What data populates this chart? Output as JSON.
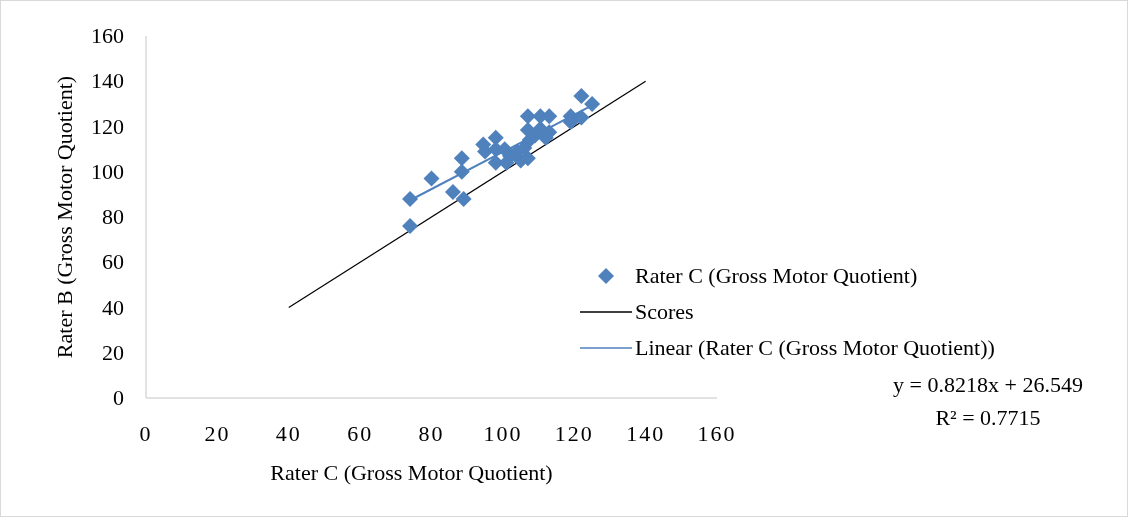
{
  "chart_data": {
    "type": "scatter",
    "xlabel": "Rater C (Gross Motor Quotient)",
    "ylabel": "Rater B (Gross Motor Quotient)",
    "xlim": [
      0,
      160
    ],
    "ylim": [
      0,
      160
    ],
    "xticks": [
      0,
      20,
      40,
      60,
      80,
      100,
      120,
      140,
      160
    ],
    "yticks": [
      0,
      20,
      40,
      60,
      80,
      100,
      120,
      140,
      160
    ],
    "grid": false,
    "legend": "right",
    "series": [
      {
        "name": "Rater C (Gross Motor Quotient)",
        "marker": "diamond",
        "color": "#4f81bd",
        "x": [
          74,
          74,
          80,
          86,
          88.5,
          88.5,
          89,
          94.5,
          95,
          98,
          98,
          98,
          100.5,
          102,
          101,
          104,
          105,
          106,
          107,
          107.5,
          107,
          109,
          110.5,
          112,
          113,
          107,
          110.5,
          113,
          122,
          125,
          119,
          119,
          122
        ],
        "values": [
          88,
          76,
          97,
          91,
          106,
          100,
          88,
          112,
          109,
          115,
          110,
          104,
          110,
          107,
          104,
          109,
          105,
          110.5,
          106,
          114,
          118.5,
          116,
          119,
          115,
          117.5,
          124.5,
          124.5,
          124.5,
          133.5,
          130,
          124.5,
          122,
          124
        ]
      },
      {
        "name": "Scores",
        "type": "line",
        "marker": "none",
        "color": "#000000",
        "x": [
          40,
          140
        ],
        "values": [
          40,
          140
        ]
      },
      {
        "name": "Linear (Rater C (Gross Motor Quotient))",
        "type": "line",
        "marker": "none",
        "color": "#4f81bd",
        "x": [
          74,
          125
        ],
        "values": [
          87.4,
          129.3
        ]
      }
    ],
    "annotations": [
      "y = 0.8218x + 26.549",
      "R² = 0.7715"
    ]
  }
}
